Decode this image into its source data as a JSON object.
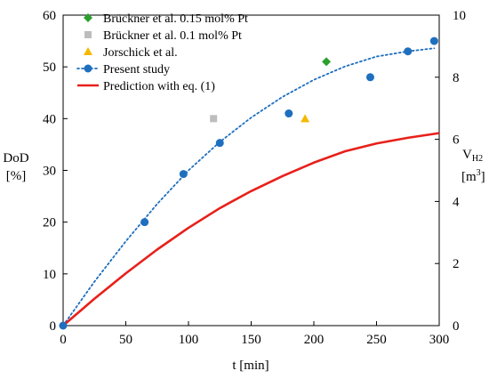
{
  "chart_data": {
    "type": "scatter",
    "xlabel": "t [min]",
    "ylabel_left_line1": "DoD",
    "ylabel_left_line2": "[%]",
    "ylabel_right_main": "V",
    "ylabel_right_sub": "H2",
    "ylabel_right_unit_open": "[m",
    "ylabel_right_unit_sup": "3",
    "ylabel_right_unit_close": "]",
    "xlim": [
      0,
      300
    ],
    "ylim": [
      0,
      60
    ],
    "y2lim": [
      0,
      10
    ],
    "x_ticks": [
      0,
      50,
      100,
      150,
      200,
      250,
      300
    ],
    "y_ticks": [
      0,
      10,
      20,
      30,
      40,
      50,
      60
    ],
    "y2_ticks": [
      0,
      2,
      4,
      6,
      8,
      10
    ],
    "grid": false,
    "legend_position": "top-left",
    "series": [
      {
        "name": "Brückner et al. 0.15 mol% Pt",
        "kind": "marker",
        "marker": "diamond",
        "color": "#2ca02c",
        "points": [
          [
            210,
            51
          ]
        ]
      },
      {
        "name": "Brückner et al. 0.1 mol% Pt",
        "kind": "marker",
        "marker": "square",
        "color": "#bdbdbd",
        "points": [
          [
            120,
            40
          ]
        ]
      },
      {
        "name": "Jorschick et al.",
        "kind": "marker",
        "marker": "triangle",
        "color": "#f5b800",
        "points": [
          [
            193,
            40
          ]
        ]
      },
      {
        "name": "Present study",
        "kind": "marker+dotted-line",
        "marker": "circle",
        "color": "#1f6fbf",
        "points": [
          [
            0,
            0
          ],
          [
            65,
            20
          ],
          [
            96,
            29.3
          ],
          [
            125,
            35.3
          ],
          [
            180,
            41
          ],
          [
            245,
            48
          ],
          [
            275,
            53
          ],
          [
            296,
            55
          ]
        ],
        "fit_line": [
          [
            0,
            0
          ],
          [
            25,
            8.5
          ],
          [
            50,
            16.3
          ],
          [
            75,
            23.5
          ],
          [
            100,
            30
          ],
          [
            125,
            35.5
          ],
          [
            150,
            40.2
          ],
          [
            175,
            44.2
          ],
          [
            200,
            47.5
          ],
          [
            225,
            50.1
          ],
          [
            250,
            52.0
          ],
          [
            275,
            53.0
          ],
          [
            296,
            53.6
          ]
        ]
      },
      {
        "name": "Prediction with eq. (1)",
        "kind": "line",
        "color": "#e8201a",
        "points": [
          [
            0,
            0
          ],
          [
            25,
            5.2
          ],
          [
            50,
            10.1
          ],
          [
            75,
            14.7
          ],
          [
            100,
            18.9
          ],
          [
            125,
            22.7
          ],
          [
            150,
            26.0
          ],
          [
            175,
            28.9
          ],
          [
            200,
            31.5
          ],
          [
            225,
            33.7
          ],
          [
            250,
            35.2
          ],
          [
            275,
            36.3
          ],
          [
            300,
            37.2
          ]
        ]
      }
    ]
  }
}
